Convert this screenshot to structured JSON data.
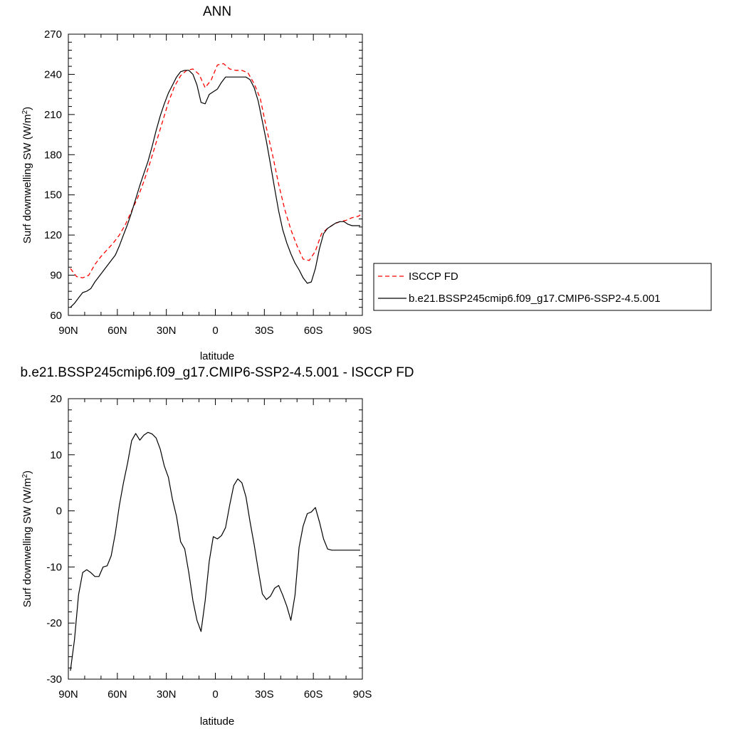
{
  "chart_data": [
    {
      "type": "line",
      "title": "ANN",
      "xlabel": "latitude",
      "ylabel": "Surf downwelling SW",
      "ylabel_unit_base": "(W/m",
      "ylabel_unit_exp": "2",
      "ylabel_unit_close": ")",
      "xlim": [
        90,
        -90
      ],
      "ylim": [
        60,
        270
      ],
      "x_ticks": [
        {
          "value": 90,
          "label": "90N"
        },
        {
          "value": 60,
          "label": "60N"
        },
        {
          "value": 30,
          "label": "30N"
        },
        {
          "value": 0,
          "label": "0"
        },
        {
          "value": -30,
          "label": "30S"
        },
        {
          "value": -60,
          "label": "60S"
        },
        {
          "value": -90,
          "label": "90S"
        }
      ],
      "y_ticks": [
        60,
        90,
        120,
        150,
        180,
        210,
        240,
        270
      ],
      "legend_position": "right",
      "series": [
        {
          "name": "ISCCP FD",
          "color": "#ff0000",
          "dash": "dashed",
          "x": [
            88.75,
            85,
            81.25,
            77.5,
            73.75,
            70,
            66.25,
            62.5,
            58.75,
            55,
            51.25,
            47.5,
            43.75,
            40,
            36.25,
            32.5,
            28.75,
            25,
            21.25,
            17.5,
            13.75,
            10,
            6.25,
            2.5,
            -1.25,
            -5,
            -8.75,
            -12.5,
            -16.25,
            -20,
            -23.75,
            -27.5,
            -31.25,
            -35,
            -38.75,
            -42.5,
            -46.25,
            -50,
            -53.75,
            -57.5,
            -61.25,
            -65,
            -68.75,
            -72.5,
            -76.25,
            -80,
            -83.75,
            -87.5,
            -88.75
          ],
          "y": [
            95,
            89,
            88,
            90,
            98,
            104,
            109,
            114,
            120,
            128,
            138,
            148,
            160,
            174,
            189,
            204,
            219,
            231,
            239,
            243,
            244,
            240,
            230,
            236,
            247,
            248,
            244,
            243,
            243,
            241,
            233,
            222,
            200,
            180,
            158,
            139,
            124,
            112,
            102,
            101,
            108,
            121,
            125,
            128,
            130,
            131,
            133,
            134,
            135
          ]
        },
        {
          "name": "b.e21.BSSP245cmip6.f09_g17.CMIP6-SSP2-4.5.001",
          "color": "#000000",
          "dash": "solid",
          "x": [
            88.75,
            86.25,
            83.75,
            81.25,
            78.75,
            76.25,
            73.75,
            71.25,
            68.75,
            66.25,
            63.75,
            61.25,
            58.75,
            56.25,
            53.75,
            51.25,
            48.75,
            46.25,
            43.75,
            41.25,
            38.75,
            36.25,
            33.75,
            31.25,
            28.75,
            26.25,
            23.75,
            21.25,
            18.75,
            16.25,
            13.75,
            11.25,
            8.75,
            6.25,
            3.75,
            1.25,
            -1.25,
            -3.75,
            -6.25,
            -8.75,
            -11.25,
            -13.75,
            -16.25,
            -18.75,
            -21.25,
            -23.75,
            -26.25,
            -28.75,
            -31.25,
            -33.75,
            -36.25,
            -38.75,
            -41.25,
            -43.75,
            -46.25,
            -48.75,
            -51.25,
            -53.75,
            -56.25,
            -58.75,
            -61.25,
            -63.75,
            -66.25,
            -68.75,
            -71.25,
            -73.75,
            -76.25,
            -78.75,
            -81.25,
            -83.75,
            -86.25,
            -88.75
          ],
          "y": [
            66,
            69,
            73,
            77,
            78,
            80,
            85,
            89,
            93,
            97,
            101,
            105,
            112,
            120,
            128,
            137,
            147,
            157,
            166,
            175,
            186,
            198,
            209,
            218,
            226,
            232,
            238,
            242,
            243,
            243,
            240,
            232,
            219,
            218,
            225,
            227,
            229,
            234,
            238,
            238,
            238,
            238,
            238,
            238,
            236,
            230,
            220,
            205,
            190,
            173,
            155,
            138,
            124,
            114,
            106,
            99,
            94,
            88,
            84,
            85,
            95,
            110,
            121,
            125,
            127,
            129,
            130,
            130,
            128,
            127,
            127,
            127
          ]
        }
      ]
    },
    {
      "type": "line",
      "title": "b.e21.BSSP245cmip6.f09_g17.CMIP6-SSP2-4.5.001 - ISCCP FD",
      "xlabel": "latitude",
      "ylabel": "Surf downwelling SW",
      "ylabel_unit_base": "(W/m",
      "ylabel_unit_exp": "2",
      "ylabel_unit_close": ")",
      "xlim": [
        90,
        -90
      ],
      "ylim": [
        -30,
        20
      ],
      "x_ticks": [
        {
          "value": 90,
          "label": "90N"
        },
        {
          "value": 60,
          "label": "60N"
        },
        {
          "value": 30,
          "label": "30N"
        },
        {
          "value": 0,
          "label": "0"
        },
        {
          "value": -30,
          "label": "30S"
        },
        {
          "value": -60,
          "label": "60S"
        },
        {
          "value": -90,
          "label": "90S"
        }
      ],
      "y_ticks": [
        -30,
        -20,
        -10,
        0,
        10,
        20
      ],
      "series": [
        {
          "color": "#000000",
          "dash": "solid",
          "x": [
            88.75,
            86.25,
            83.75,
            81.25,
            78.75,
            76.25,
            73.75,
            71.25,
            68.75,
            66.25,
            63.75,
            61.25,
            58.75,
            56.25,
            53.75,
            51.25,
            48.75,
            46.25,
            43.75,
            41.25,
            38.75,
            36.25,
            33.75,
            31.25,
            28.75,
            26.25,
            23.75,
            21.25,
            18.75,
            16.25,
            13.75,
            11.25,
            8.75,
            6.25,
            3.75,
            1.25,
            -1.25,
            -3.75,
            -6.25,
            -8.75,
            -11.25,
            -13.75,
            -16.25,
            -18.75,
            -21.25,
            -23.75,
            -26.25,
            -28.75,
            -31.25,
            -33.75,
            -36.25,
            -38.75,
            -41.25,
            -43.75,
            -46.25,
            -48.75,
            -51.25,
            -53.75,
            -56.25,
            -58.75,
            -61.25,
            -63.75,
            -66.25,
            -68.75,
            -71.25,
            -73.75,
            -76.25,
            -78.75,
            -81.25,
            -83.75,
            -86.25,
            -88.75
          ],
          "y": [
            -28.5,
            -23,
            -15,
            -11,
            -10.5,
            -11,
            -11.7,
            -11.7,
            -10,
            -9.8,
            -8,
            -4,
            1,
            5,
            8.5,
            12.5,
            13.8,
            12.6,
            13.5,
            14,
            13.7,
            13,
            11,
            8,
            6,
            2,
            -1,
            -5.5,
            -6.8,
            -11,
            -16,
            -19.5,
            -21.5,
            -16,
            -9,
            -4.6,
            -5,
            -4.4,
            -3,
            1,
            4.5,
            5.7,
            5,
            2.5,
            -2,
            -6,
            -10.5,
            -14.8,
            -15.8,
            -15.2,
            -13.8,
            -13.3,
            -15,
            -17,
            -19.5,
            -15,
            -6.5,
            -2.7,
            -0.5,
            -0.2,
            0.6,
            -2,
            -5,
            -6.8,
            -7,
            -7,
            -7,
            -7,
            -7,
            -7,
            -7,
            -7
          ]
        }
      ]
    }
  ]
}
